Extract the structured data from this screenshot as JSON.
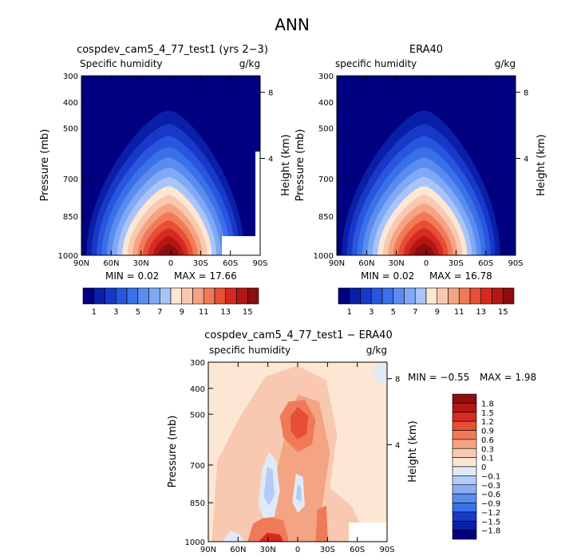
{
  "title": "ANN",
  "chart_data": [
    {
      "type": "heatmap",
      "id": "model",
      "title": "cospdev_cam5_4_77_test1 (yrs 2−3)",
      "subtitle_left": "Specific humidity",
      "subtitle_right": "g/kg",
      "ylabel": "Pressure (mb)",
      "ylabel_right": "Height (km)",
      "x_ticks": [
        "90N",
        "60N",
        "30N",
        "0",
        "30S",
        "60S",
        "90S"
      ],
      "y_ticks": [
        "300",
        "400",
        "500",
        "700",
        "850",
        "1000"
      ],
      "y_ticks_right": [
        "8",
        "4"
      ],
      "min_label": "MIN =    0.02",
      "max_label": "MAX =   17.66",
      "min": 0.02,
      "max": 17.66,
      "peak_lat": 2,
      "missing_region": "surface, 45S–90S"
    },
    {
      "type": "heatmap",
      "id": "obs",
      "title": "ERA40",
      "subtitle_left": "specific humidity",
      "subtitle_right": "g/kg",
      "ylabel": "Pressure (mb)",
      "ylabel_right": "Height (km)",
      "x_ticks": [
        "90N",
        "60N",
        "30N",
        "0",
        "30S",
        "60S",
        "90S"
      ],
      "y_ticks": [
        "300",
        "400",
        "500",
        "700",
        "850",
        "1000"
      ],
      "y_ticks_right": [
        "8",
        "4"
      ],
      "min_label": "MIN =    0.02",
      "max_label": "MAX =   16.78",
      "min": 0.02,
      "max": 16.78,
      "peak_lat": 2
    },
    {
      "type": "heatmap",
      "id": "diff",
      "title": "cospdev_cam5_4_77_test1 − ERA40",
      "subtitle_left": "specific humidity",
      "subtitle_right": "g/kg",
      "ylabel": "Pressure (mb)",
      "ylabel_right": "Height (km)",
      "x_ticks": [
        "90N",
        "60N",
        "30N",
        "0",
        "30S",
        "60S",
        "90S"
      ],
      "y_ticks": [
        "300",
        "400",
        "500",
        "700",
        "850",
        "1000"
      ],
      "y_ticks_right": [
        "8",
        "4"
      ],
      "min_label": "MIN =   −0.55",
      "max_label": "MAX =    1.98",
      "min": -0.55,
      "max": 1.98
    }
  ],
  "colorbar_top": {
    "labels": [
      "1",
      "3",
      "5",
      "7",
      "9",
      "11",
      "13",
      "15"
    ],
    "colors": [
      "#000080",
      "#0a1fa8",
      "#1838c8",
      "#2856dc",
      "#3a70e8",
      "#5a8cf0",
      "#7fa8f5",
      "#a8c4f8",
      "#fbe7d4",
      "#f8c9b0",
      "#f4a383",
      "#f07a58",
      "#e74e34",
      "#d42a20",
      "#b31714",
      "#8b0d10"
    ]
  },
  "colorbar_diff": {
    "labels": [
      "1.8",
      "1.5",
      "1.2",
      "0.9",
      "0.6",
      "0.3",
      "0.1",
      "0",
      "−0.1",
      "−0.3",
      "−0.6",
      "−0.9",
      "−1.2",
      "−1.5",
      "−1.8"
    ],
    "colors": [
      "#8b0d10",
      "#b31714",
      "#d42a20",
      "#e74e34",
      "#f07a58",
      "#f4a383",
      "#f8c9b0",
      "#fbe7d4",
      "#dfeaf9",
      "#b3ccf6",
      "#8aaef3",
      "#5a8cf0",
      "#3a70e8",
      "#1838c8",
      "#0a1fa8",
      "#000080"
    ]
  }
}
